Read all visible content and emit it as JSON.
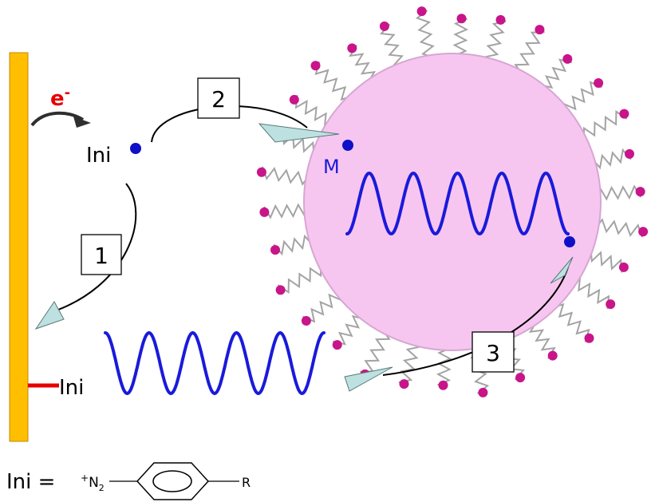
{
  "labels": {
    "electron": "e",
    "electron_charge": "-",
    "initiator": "Ini",
    "monomer": "M",
    "grafted_initiator": "Ini",
    "step1": "1",
    "step2": "2",
    "step3": "3"
  },
  "formula": {
    "lhs": "Ini =",
    "charge": "+",
    "diazo_n": "N",
    "diazo_sub": "2",
    "substituent": "R"
  },
  "colors": {
    "electrode": "#ffbf00",
    "electrode_edge": "#c08a00",
    "micelle_core": "#f7c6f0",
    "micelle_edge": "#d6a6d2",
    "surfactant_tail": "#a3a3a3",
    "surfactant_head": "#c8158a",
    "polymer": "#1a1adb",
    "radical_dot": "#1010c8",
    "grafted_bond": "#e60000",
    "electron_text": "#e60000",
    "arrow_head": "#bde0e0",
    "arrow_line": "#000000",
    "text": "#000000"
  }
}
